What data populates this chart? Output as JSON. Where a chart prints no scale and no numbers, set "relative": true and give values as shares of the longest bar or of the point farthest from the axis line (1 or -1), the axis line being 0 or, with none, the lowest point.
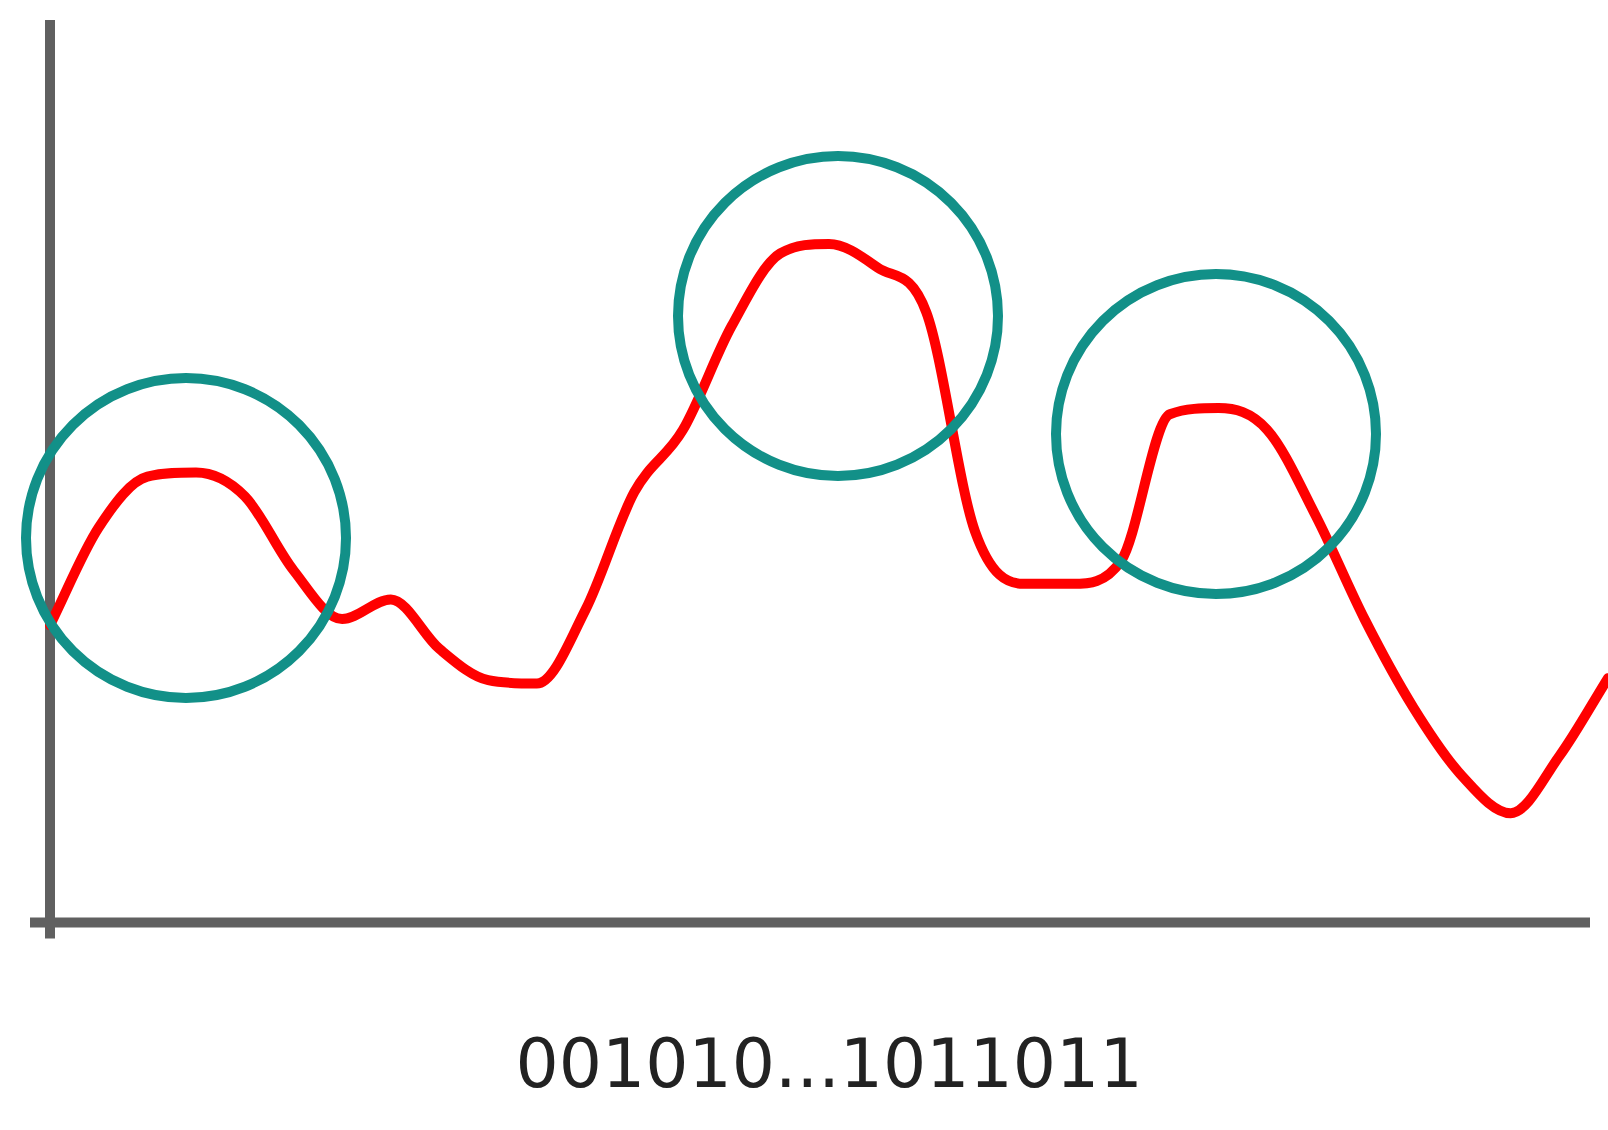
{
  "chart_data": {
    "type": "line",
    "relative": true,
    "xlabel": "001010...1011011",
    "categories": [
      null,
      null,
      null,
      null,
      null,
      null,
      null,
      null,
      null,
      null,
      null,
      null,
      null,
      null,
      null,
      null,
      null,
      null,
      null,
      null,
      null,
      null,
      null,
      null,
      null,
      null,
      null,
      null,
      null,
      null,
      null,
      null,
      null
    ],
    "series": [
      {
        "color": "#ff0000",
        "values": [
          0.438,
          0.582,
          0.657,
          0.663,
          0.628,
          0.519,
          0.447,
          0.476,
          0.403,
          0.357,
          0.352,
          0.461,
          0.634,
          0.726,
          0.879,
          0.986,
          1,
          0.965,
          0.899,
          0.576,
          0.499,
          0.499,
          0.533,
          0.749,
          0.758,
          0.726,
          0.599,
          0.447,
          0.317,
          0.216,
          0.161,
          0.245,
          0.36
        ]
      }
    ],
    "grid": false,
    "legend": false,
    "marker": "none",
    "line_style": "solid"
  }
}
